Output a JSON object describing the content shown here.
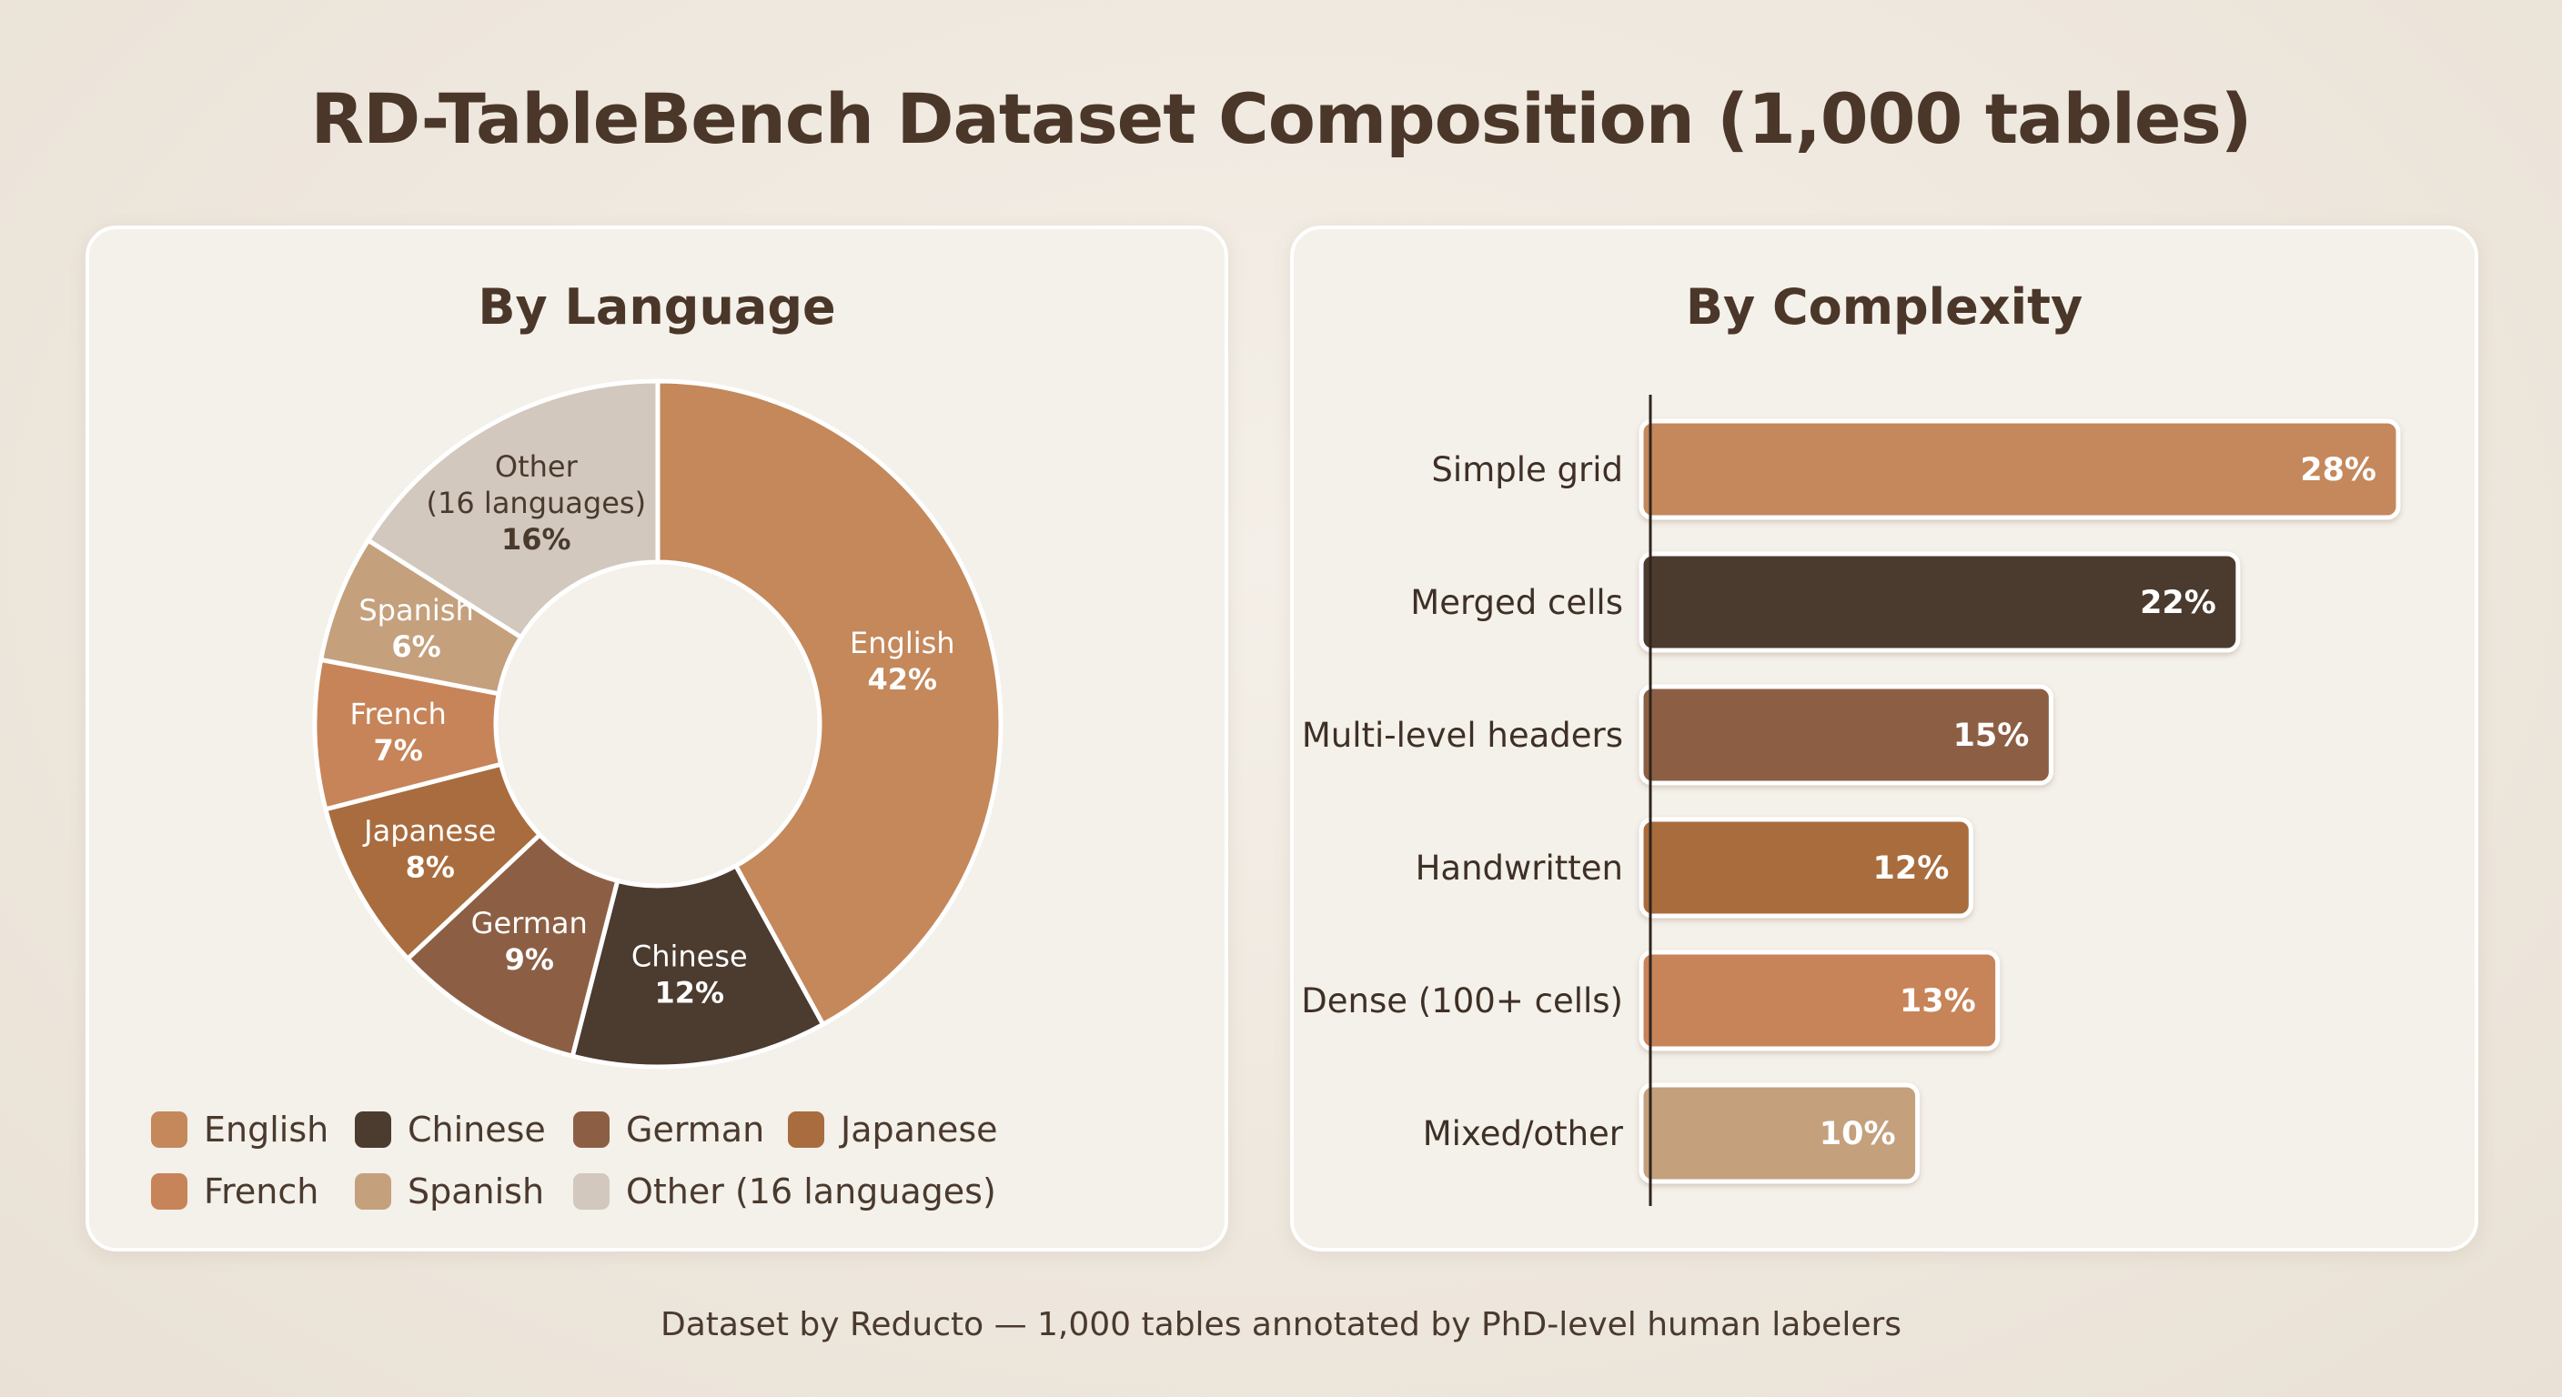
{
  "title": "RD-TableBench Dataset Composition (1,000 tables)",
  "caption": "Dataset by Reducto — 1,000 tables annotated by PhD-level human labelers",
  "chart_data": [
    {
      "type": "pie",
      "donut": true,
      "title": "By Language",
      "unit": "%",
      "slices": [
        {
          "label": "English",
          "value": 42,
          "color": "#c4885b"
        },
        {
          "label": "Chinese",
          "value": 12,
          "color": "#4c3b2f"
        },
        {
          "label": "German",
          "value": 9,
          "color": "#8c5f45"
        },
        {
          "label": "Japanese",
          "value": 8,
          "color": "#a96c3e"
        },
        {
          "label": "French",
          "value": 7,
          "color": "#c78459"
        },
        {
          "label": "Spanish",
          "value": 6,
          "color": "#c4a07d"
        },
        {
          "label": "Other (16 languages)",
          "label_lines": [
            "Other",
            "(16 languages)"
          ],
          "value": 16,
          "color": "#d2c8bd"
        }
      ],
      "legend": {
        "placement": "bottom",
        "items": [
          "English",
          "Chinese",
          "German",
          "Japanese",
          "French",
          "Spanish",
          "Other (16 languages)"
        ],
        "colors": [
          "#c4885b",
          "#4c3b2f",
          "#8c5f45",
          "#a96c3e",
          "#c78459",
          "#c4a07d",
          "#d2c8bd"
        ]
      }
    },
    {
      "type": "bar",
      "orientation": "horizontal",
      "title": "By Complexity",
      "unit": "%",
      "xlim": [
        0,
        30
      ],
      "categories": [
        "Simple grid",
        "Merged cells",
        "Multi-level headers",
        "Handwritten",
        "Dense (100+ cells)",
        "Mixed/other"
      ],
      "values": [
        28,
        22,
        15,
        12,
        13,
        10
      ],
      "colors": [
        "#c4885b",
        "#4c3b2f",
        "#8c5f45",
        "#a96c3e",
        "#c78459",
        "#c4a07d"
      ]
    }
  ]
}
